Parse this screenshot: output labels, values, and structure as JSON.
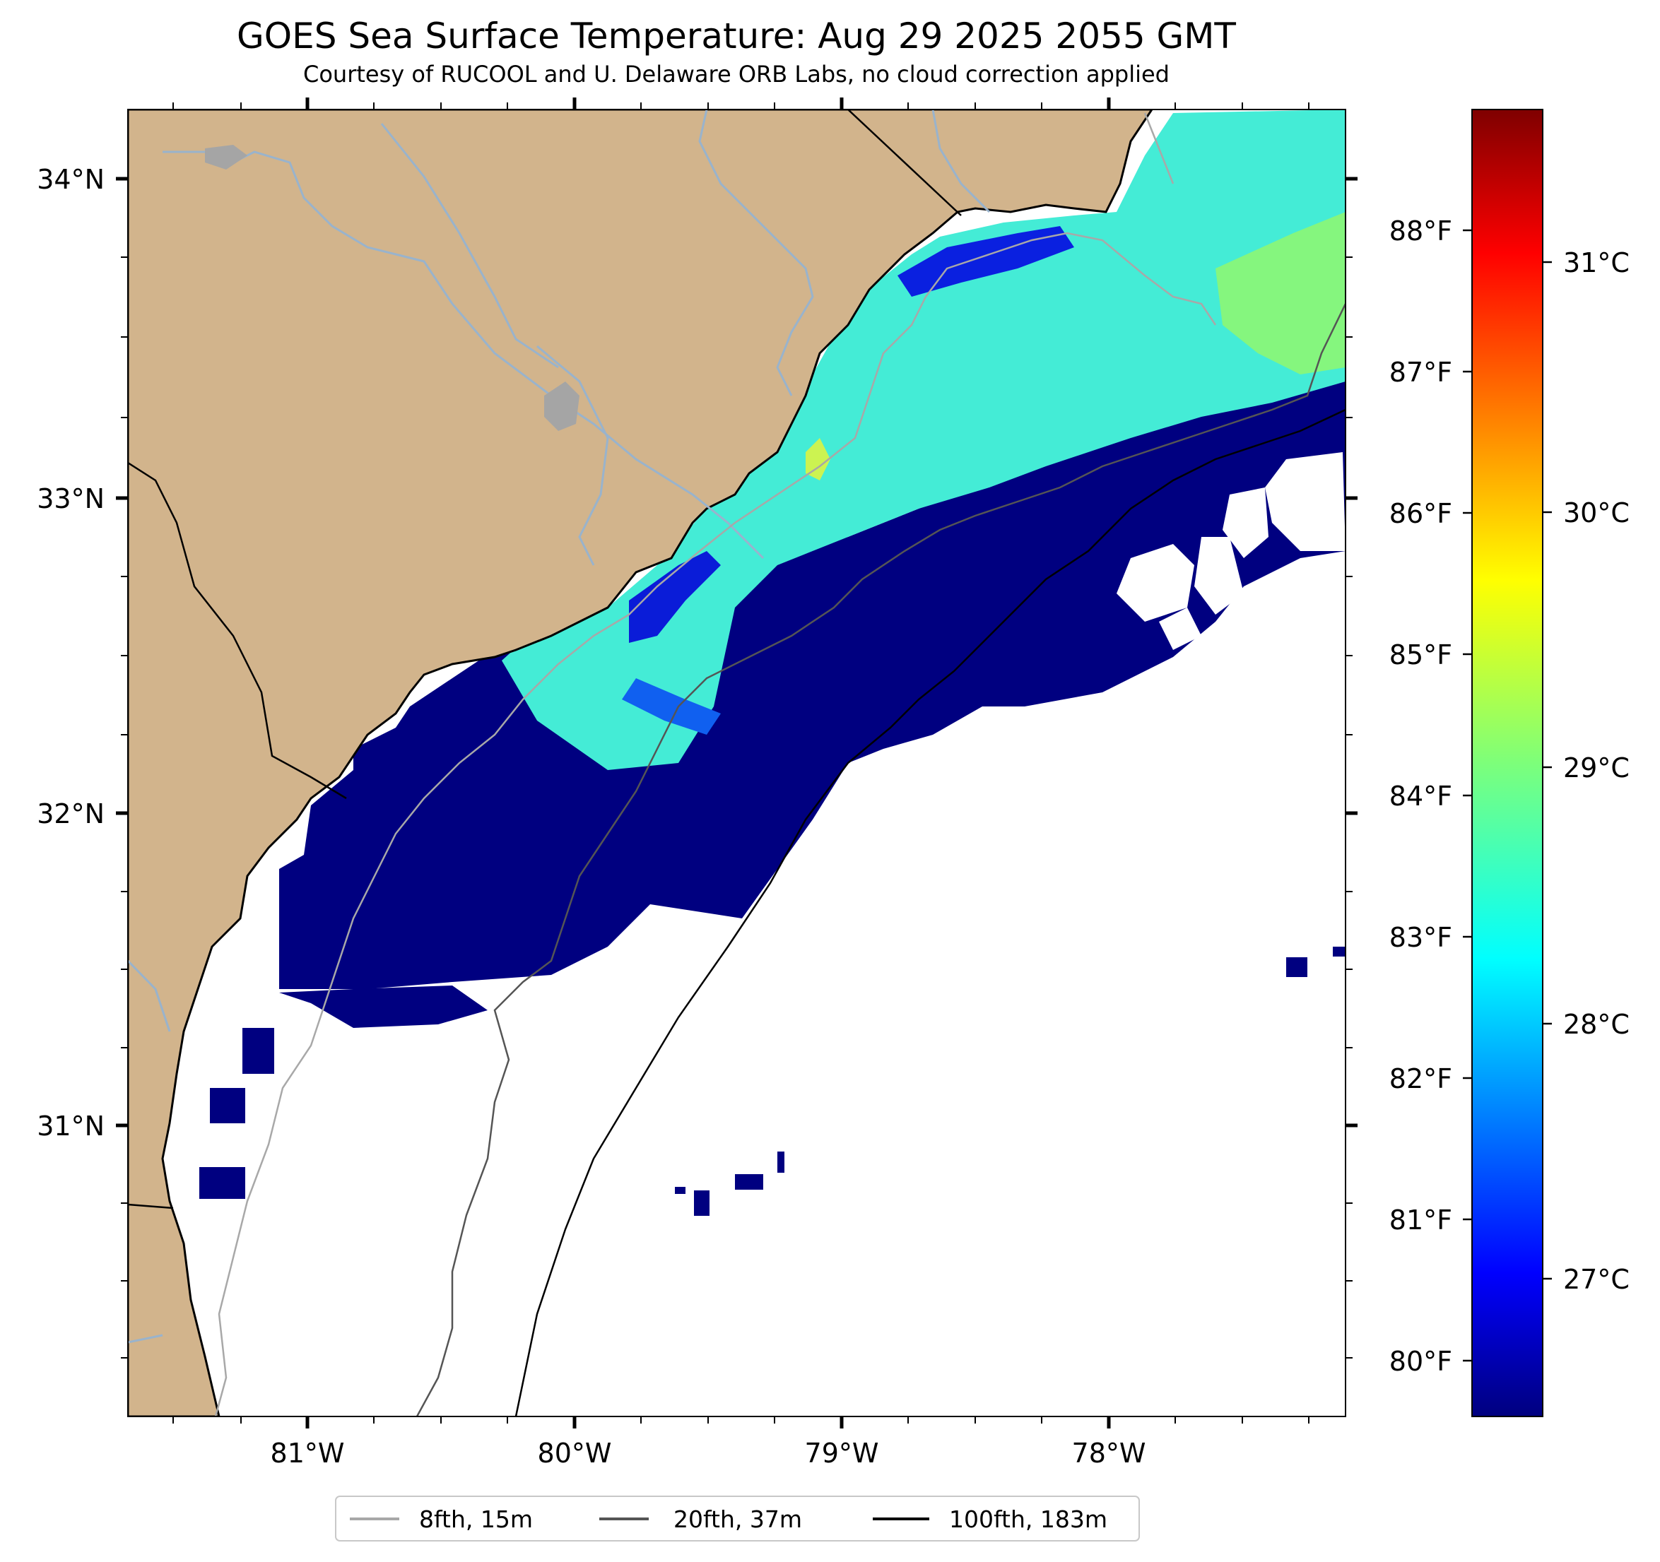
{
  "title": "GOES Sea Surface Temperature: Aug 29 2025 2055 GMT",
  "subtitle": "Courtesy of RUCOOL and U. Delaware ORB Labs, no cloud correction applied",
  "map": {
    "lon_ticks": [
      "81°W",
      "80°W",
      "79°W",
      "78°W"
    ],
    "lat_ticks": [
      "34°N",
      "33°N",
      "32°N",
      "31°N"
    ],
    "lon_range": [
      -81.67,
      -77.12
    ],
    "lat_range": [
      30.12,
      34.22
    ]
  },
  "colorbar": {
    "fahrenheit_ticks": [
      "88°F",
      "87°F",
      "86°F",
      "85°F",
      "84°F",
      "83°F",
      "82°F",
      "81°F",
      "80°F"
    ],
    "celsius_ticks": [
      "31°C",
      "30°C",
      "29°C",
      "28°C",
      "27°C"
    ],
    "colormap": "jet",
    "range_c": [
      26.5,
      31.7
    ]
  },
  "legend": {
    "items": [
      {
        "label": "8fth, 15m",
        "color": "#a8a8a8"
      },
      {
        "label": "20fth, 37m",
        "color": "#555555"
      },
      {
        "label": "100fth, 183m",
        "color": "#000000"
      }
    ]
  },
  "colors": {
    "land": "#d2b48c",
    "river": "#99b3cc",
    "cold_water": "#000080",
    "warm_shelf": "#44f0d0",
    "cloud_gap": "#ffffff"
  }
}
